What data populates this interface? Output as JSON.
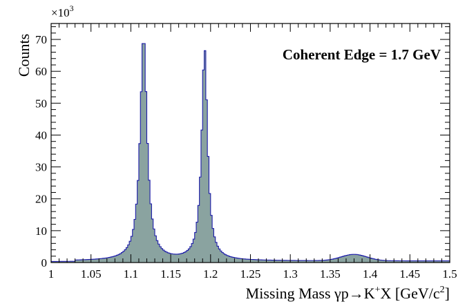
{
  "chart_data": {
    "type": "histogram",
    "ylabel": "Counts",
    "y_multiplier": "×10",
    "y_multiplier_exp": "3",
    "xlabel": {
      "pre": "Missing Mass γp→K",
      "sup1": "+",
      "mid": "X [GeV/c",
      "sup2": "2",
      "post": "]"
    },
    "annotation": "Coherent Edge = 1.7 GeV",
    "xlim": [
      1.0,
      1.5
    ],
    "ylim": [
      0,
      75
    ],
    "x_ticks": [
      "1",
      "1.05",
      "1.1",
      "1.15",
      "1.2",
      "1.25",
      "1.3",
      "1.35",
      "1.4",
      "1.45",
      "1.5"
    ],
    "y_ticks": [
      "0",
      "10",
      "20",
      "30",
      "40",
      "50",
      "60",
      "70"
    ],
    "bin_width": 0.002,
    "fill_color": "#8aa3a0",
    "line_color": "#1a1aa8",
    "peaks": [
      {
        "center": 1.116,
        "height": 70.5
      },
      {
        "center": 1.1925,
        "height": 66.5
      },
      {
        "center": 1.38,
        "height": 2.0
      }
    ],
    "background_level": 0.5
  }
}
